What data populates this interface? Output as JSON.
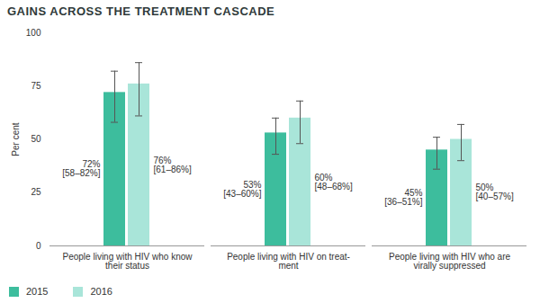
{
  "chart_data": {
    "type": "bar",
    "title": "GAINS ACROSS THE TREATMENT CASCADE",
    "y_label": "Per cent",
    "categories": [
      "People living with HIV who know\ntheir status",
      "People living with HIV on treat-\nment",
      "People living with HIV who are\nvirally suppressed"
    ],
    "series": [
      {
        "name": "2015",
        "color": "#3dbd9d",
        "values": [
          72,
          53,
          45
        ],
        "value_labels": [
          "72%",
          "53%",
          "45%"
        ],
        "lower": [
          58,
          43,
          36
        ],
        "upper": [
          82,
          60,
          51
        ],
        "interval_labels": [
          "[58–82%]",
          "[43–60%]",
          "[36–51%]"
        ]
      },
      {
        "name": "2016",
        "color": "#a9e5d9",
        "values": [
          76,
          60,
          50
        ],
        "value_labels": [
          "76%",
          "60%",
          "50%"
        ],
        "lower": [
          61,
          48,
          40
        ],
        "upper": [
          86,
          68,
          57
        ],
        "interval_labels": [
          "[61–86%]",
          "[48–68%]",
          "[40–57%]"
        ]
      }
    ],
    "ylim": [
      0,
      100
    ],
    "yticks": [
      0,
      25,
      50,
      75,
      100
    ],
    "grid": false,
    "legend": "bottom-left",
    "data_labels": true
  }
}
